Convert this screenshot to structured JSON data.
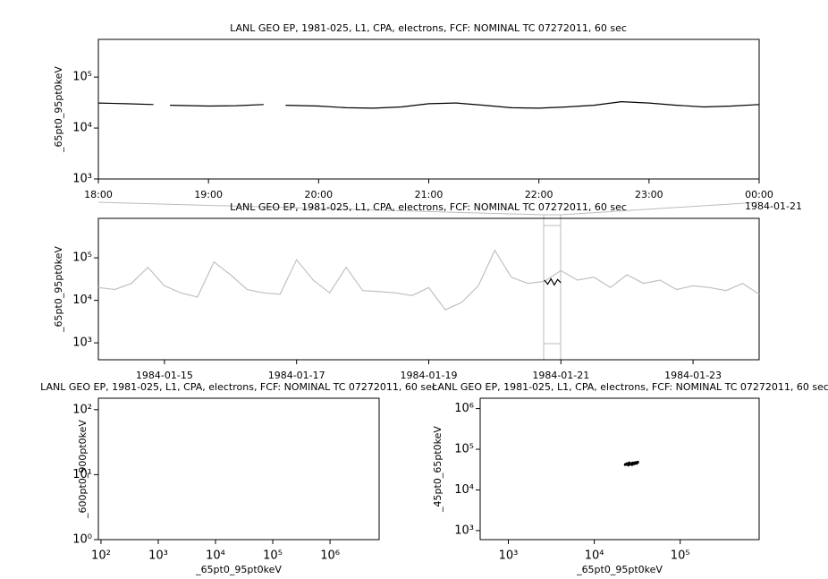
{
  "chart_data": [
    {
      "type": "line",
      "title": "LANL GEO EP, 1981-025, L1, CPA, electrons, FCF: NOMINAL TC 07272011, 60 sec",
      "ylabel": "_65pt0_95pt0keV",
      "x_annotation": "1984-01-21",
      "log_y": true,
      "xlim": [
        18,
        24
      ],
      "xticks": [
        {
          "value": 18,
          "label": "18:00"
        },
        {
          "value": 19,
          "label": "19:00"
        },
        {
          "value": 20,
          "label": "20:00"
        },
        {
          "value": 21,
          "label": "21:00"
        },
        {
          "value": 22,
          "label": "22:00"
        },
        {
          "value": 23,
          "label": "23:00"
        },
        {
          "value": 24,
          "label": "00:00"
        }
      ],
      "ylim": [
        1000,
        550000
      ],
      "yticks": [
        {
          "value": 1000,
          "label": "10³"
        },
        {
          "value": 10000,
          "label": "10⁴"
        },
        {
          "value": 100000,
          "label": "10⁵"
        }
      ],
      "series": [
        {
          "color": "#000000",
          "x": [
            18,
            18.25,
            18.5,
            18.55,
            18.65,
            19,
            19.25,
            19.5,
            19.6,
            19.7,
            20,
            20.25,
            20.5,
            20.75,
            21,
            21.25,
            21.5,
            21.75,
            22,
            22.25,
            22.5,
            22.75,
            23,
            23.25,
            23.5,
            23.75,
            24
          ],
          "values": [
            31000,
            30000,
            29000,
            null,
            28000,
            27000,
            27500,
            29000,
            null,
            28000,
            27000,
            25000,
            24500,
            26000,
            30000,
            31000,
            28000,
            25000,
            24500,
            26000,
            28000,
            33000,
            31000,
            28000,
            26000,
            27000,
            29000
          ]
        }
      ]
    },
    {
      "type": "line",
      "title": "LANL GEO EP, 1981-025, L1, CPA, electrons, FCF: NOMINAL TC 07272011, 60 sec",
      "ylabel": "_65pt0_95pt0keV",
      "log_y": true,
      "xlim": [
        14,
        24
      ],
      "xticks": [
        {
          "value": 15,
          "label": "1984-01-15"
        },
        {
          "value": 17,
          "label": "1984-01-17"
        },
        {
          "value": 19,
          "label": "1984-01-19"
        },
        {
          "value": 21,
          "label": "1984-01-21"
        },
        {
          "value": 23,
          "label": "1984-01-23"
        }
      ],
      "ylim": [
        400,
        850000
      ],
      "yticks": [
        {
          "value": 1000,
          "label": "10³"
        },
        {
          "value": 10000,
          "label": "10⁴"
        },
        {
          "value": 100000,
          "label": "10⁵"
        }
      ],
      "series": [
        {
          "color": "#c0c0c0",
          "x": [
            14,
            14.25,
            14.5,
            14.75,
            15,
            15.25,
            15.5,
            15.75,
            16,
            16.25,
            16.5,
            16.75,
            17,
            17.25,
            17.5,
            17.75,
            18,
            18.25,
            18.5,
            18.75,
            19,
            19.25,
            19.5,
            19.75,
            20,
            20.25,
            20.5,
            20.75,
            21,
            21.25,
            21.5,
            21.75,
            22,
            22.25,
            22.5,
            22.75,
            23,
            23.25,
            23.5,
            23.75,
            24
          ],
          "values": [
            20000,
            18000,
            25000,
            60000,
            22000,
            15000,
            12000,
            80000,
            40000,
            18000,
            15000,
            14000,
            90000,
            30000,
            15000,
            60000,
            17000,
            16000,
            15000,
            13000,
            20000,
            6000,
            9000,
            22000,
            150000,
            35000,
            25000,
            28000,
            50000,
            30000,
            35000,
            20000,
            40000,
            25000,
            30000,
            18000,
            22000,
            20000,
            17000,
            25000,
            14000
          ]
        },
        {
          "color": "#000000",
          "x": [
            20.75,
            20.8,
            20.85,
            20.9,
            20.95,
            21
          ],
          "values": [
            30000,
            24000,
            32000,
            23000,
            31000,
            26000
          ]
        }
      ]
    },
    {
      "type": "scatter",
      "title": "LANL GEO EP, 1981-025, L1, CPA, electrons, FCF: NOMINAL TC 07272011, 60 sec",
      "xlabel": "_65pt0_95pt0keV",
      "ylabel": "_600pt0_900pt0keV",
      "log_x": true,
      "log_y": true,
      "xlim": [
        90,
        7200000
      ],
      "xticks": [
        {
          "value": 100,
          "label": "10²"
        },
        {
          "value": 1000,
          "label": "10³"
        },
        {
          "value": 10000,
          "label": "10⁴"
        },
        {
          "value": 100000,
          "label": "10⁵"
        },
        {
          "value": 1000000,
          "label": "10⁶"
        }
      ],
      "ylim": [
        1,
        150
      ],
      "yticks": [
        {
          "value": 1,
          "label": "10⁰"
        },
        {
          "value": 10,
          "label": "10¹"
        },
        {
          "value": 100,
          "label": "10²"
        }
      ],
      "series": [
        {
          "color": "#000000",
          "x": [],
          "values": []
        }
      ]
    },
    {
      "type": "scatter",
      "title": "LANL GEO EP, 1981-025, L1, CPA, electrons, FCF: NOMINAL TC 07272011, 60 sec",
      "xlabel": "_65pt0_95pt0keV",
      "ylabel": "_45pt0_65pt0keV",
      "log_x": true,
      "log_y": true,
      "xlim": [
        470,
        830000
      ],
      "xticks": [
        {
          "value": 1000,
          "label": "10³"
        },
        {
          "value": 10000,
          "label": "10⁴"
        },
        {
          "value": 100000,
          "label": "10⁵"
        }
      ],
      "ylim": [
        600,
        1800000
      ],
      "yticks": [
        {
          "value": 1000,
          "label": "10³"
        },
        {
          "value": 10000,
          "label": "10⁴"
        },
        {
          "value": 100000,
          "label": "10⁵"
        },
        {
          "value": 1000000,
          "label": "10⁶"
        }
      ],
      "series": [
        {
          "color": "#000000",
          "x": [
            23000,
            24000,
            25000,
            26000,
            27000,
            28000,
            29000,
            30000,
            31000,
            32000,
            25500,
            27500
          ],
          "values": [
            42000,
            44000,
            41000,
            45000,
            43000,
            46000,
            44000,
            47000,
            45000,
            48000,
            46000,
            42000
          ]
        }
      ]
    }
  ]
}
